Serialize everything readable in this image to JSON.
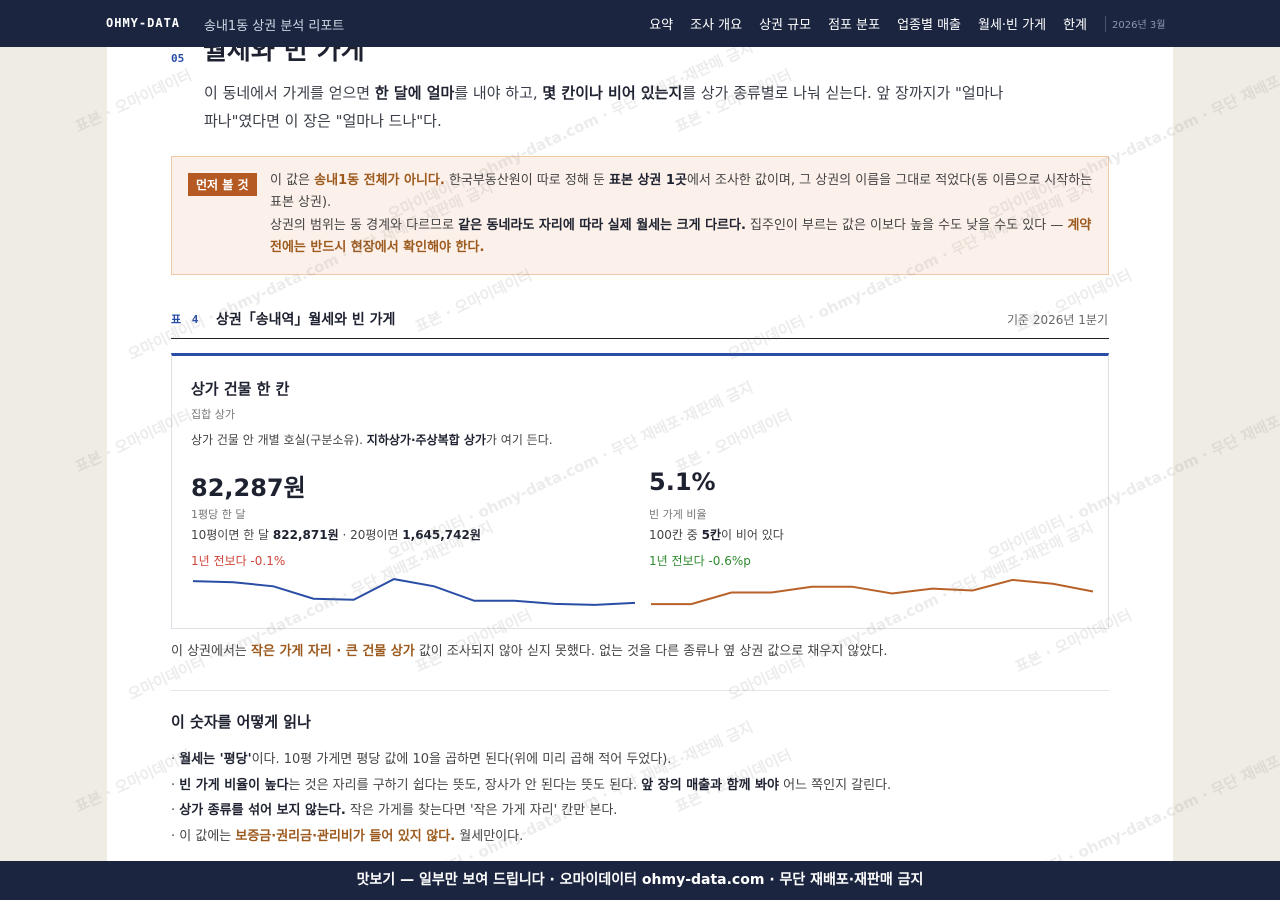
{
  "header": {
    "brand": "OHMY-DATA",
    "report": "송내1동 상권 분석 리포트",
    "nav": [
      "요약",
      "조사 개요",
      "상권 규모",
      "점포 분포",
      "업종별 매출",
      "월세·빈 가게",
      "한계"
    ],
    "date": "2026년 3월"
  },
  "section": {
    "number": "05",
    "title": "월세와 빈 가게",
    "intro": [
      {
        "text": "이 동네에서 가게를 얻으면 "
      },
      {
        "text": "한 달에 얼마",
        "style": "bold"
      },
      {
        "text": "를 내야 하고, "
      },
      {
        "text": "몇 칸이나 비어 있는지",
        "style": "bold"
      },
      {
        "text": "를 상가 종류별로 나눠 싣는다. 앞 장까지가 \"얼마나 파나\"였다면 이 장은 \"얼마나 드나\"다."
      }
    ]
  },
  "notice": {
    "badge": "먼저 볼 것",
    "paragraphs": [
      [
        {
          "text": "이 값은 "
        },
        {
          "text": "송내1동 전체가 아니다.",
          "style": "accent"
        },
        {
          "text": " 한국부동산원이 따로 정해 둔 "
        },
        {
          "text": "표본 상권 1곳",
          "style": "bold"
        },
        {
          "text": "에서 조사한 값이며, 그 상권의 이름을 그대로 적었다(동 이름으로 시작하는 표본 상권)."
        }
      ],
      [
        {
          "text": "상권의 범위는 동 경계와 다르므로 "
        },
        {
          "text": "같은 동네라도 자리에 따라 실제 월세는 크게 다르다.",
          "style": "bold"
        },
        {
          "text": " 집주인이 부르는 값은 이보다 높을 수도 낮을 수도 있다 — "
        },
        {
          "text": "계약 전에는 반드시 현장에서 확인해야 한다.",
          "style": "accent"
        }
      ]
    ]
  },
  "table": {
    "label": "표 4",
    "title": "상권「송내역」월세와 빈 가게",
    "basis": "기준 2026년 1분기"
  },
  "card": {
    "title": "상가 건물 한 칸",
    "subtitle": "집합 상가",
    "desc": [
      {
        "text": "상가 건물 안 개별 호실(구분소유). "
      },
      {
        "text": "지하상가·주상복합 상가",
        "style": "bold"
      },
      {
        "text": "가 여기 든다."
      }
    ],
    "metrics": [
      {
        "value": "82,287원",
        "label": "1평당 한 달",
        "detail": [
          {
            "text": "10평이면 한 달 "
          },
          {
            "text": "822,871원",
            "style": "bold"
          },
          {
            "text": " · 20평이면 "
          },
          {
            "text": "1,645,742원",
            "style": "bold"
          }
        ],
        "change": "1년 전보다 -0.1%",
        "change_color": "#d0453a",
        "line": {
          "type": "line",
          "color": "#2a4ea6",
          "values": [
            84400,
            84300,
            83900,
            82700,
            82600,
            84600,
            83900,
            82500,
            82500,
            82200,
            82100,
            82300
          ],
          "ylim": [
            81900,
            84800
          ]
        }
      },
      {
        "value": "5.1%",
        "label": "빈 가게 비율",
        "detail": [
          {
            "text": "100칸 중 "
          },
          {
            "text": "5칸",
            "style": "bold"
          },
          {
            "text": "이 비어 있다"
          }
        ],
        "change": "1년 전보다 -0.6%p",
        "change_color": "#2e8b2e",
        "line": {
          "type": "line",
          "color": "#b8622a",
          "values": [
            4.45,
            4.45,
            5.05,
            5.05,
            5.35,
            5.35,
            5.0,
            5.25,
            5.15,
            5.7,
            5.5,
            5.1
          ],
          "ylim": [
            4.3,
            5.85
          ]
        }
      }
    ]
  },
  "note": [
    {
      "text": "이 상권에서는 "
    },
    {
      "text": "작은 가게 자리 · 큰 건물 상가",
      "style": "accent"
    },
    {
      "text": " 값이 조사되지 않아 싣지 못했다. 없는 것을 다른 종류나 옆 상권 값으로 채우지 않았다."
    }
  ],
  "howto": {
    "title": "이 숫자를 어떻게 읽나",
    "items": [
      [
        {
          "text": "· "
        },
        {
          "text": "월세는 '평당'",
          "style": "bold"
        },
        {
          "text": "이다. 10평 가게면 평당 값에 10을 곱하면 된다(위에 미리 곱해 적어 두었다)."
        }
      ],
      [
        {
          "text": "· "
        },
        {
          "text": "빈 가게 비율이 높다",
          "style": "bold"
        },
        {
          "text": "는 것은 자리를 구하기 쉽다는 뜻도, 장사가 안 된다는 뜻도 된다. "
        },
        {
          "text": "앞 장의 매출과 함께 봐야",
          "style": "bold"
        },
        {
          "text": " 어느 쪽인지 갈린다."
        }
      ],
      [
        {
          "text": "· "
        },
        {
          "text": "상가 종류를 섞어 보지 않는다.",
          "style": "bold"
        },
        {
          "text": " 작은 가게를 찾는다면 '작은 가게 자리' 칸만 본다."
        }
      ],
      [
        {
          "text": "· 이 값에는 "
        },
        {
          "text": "보증금·권리금·관리비가 들어 있지 않다.",
          "style": "accent"
        },
        {
          "text": " 월세만이다."
        }
      ]
    ]
  },
  "footer": "맛보기 — 일부만 보여 드립니다 · 오마이데이터 ohmy-data.com · 무단 재배포·재판매 금지",
  "watermarks": [
    "표본 · 오마이데이터",
    "오마이데이터 · ohmy-data.com · 무단 재배포·재판매 금지"
  ]
}
